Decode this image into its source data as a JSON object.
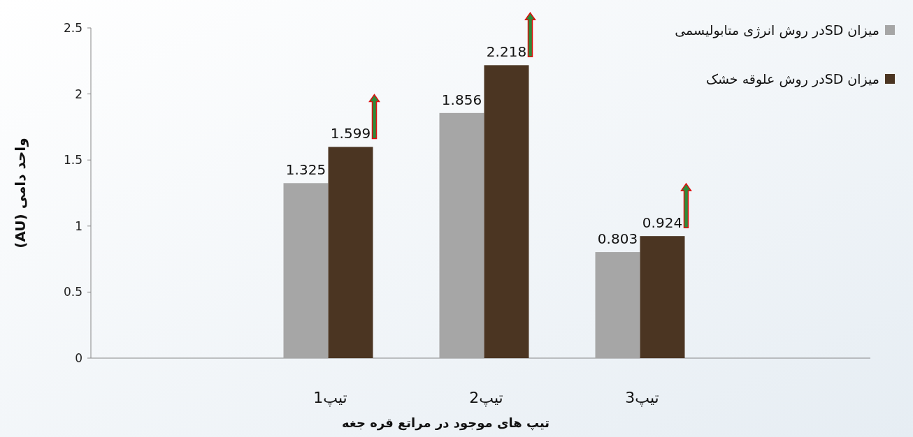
{
  "chart_data": {
    "type": "bar",
    "xlabel": "تیپ های موجود در مراتع قره جغه",
    "ylabel": "واحد دامی (AU)",
    "categories": [
      null,
      "تیپ1",
      "تیپ2",
      "تیپ3",
      null
    ],
    "series": [
      {
        "name": "میزان SDدر روش انرژی متابولیسمی",
        "color": "#a6a6a6",
        "values": [
          null,
          1.325,
          1.856,
          0.803,
          null
        ]
      },
      {
        "name": "میزان SDدر روش علوقه خشک",
        "color": "#4b3522",
        "values": [
          null,
          1.599,
          2.218,
          0.924,
          null
        ]
      }
    ],
    "ylim": [
      0,
      2.5
    ],
    "yticks": [
      0,
      0.5,
      1,
      1.5,
      2,
      2.5
    ],
    "data_labels": true,
    "legend": "top right"
  }
}
